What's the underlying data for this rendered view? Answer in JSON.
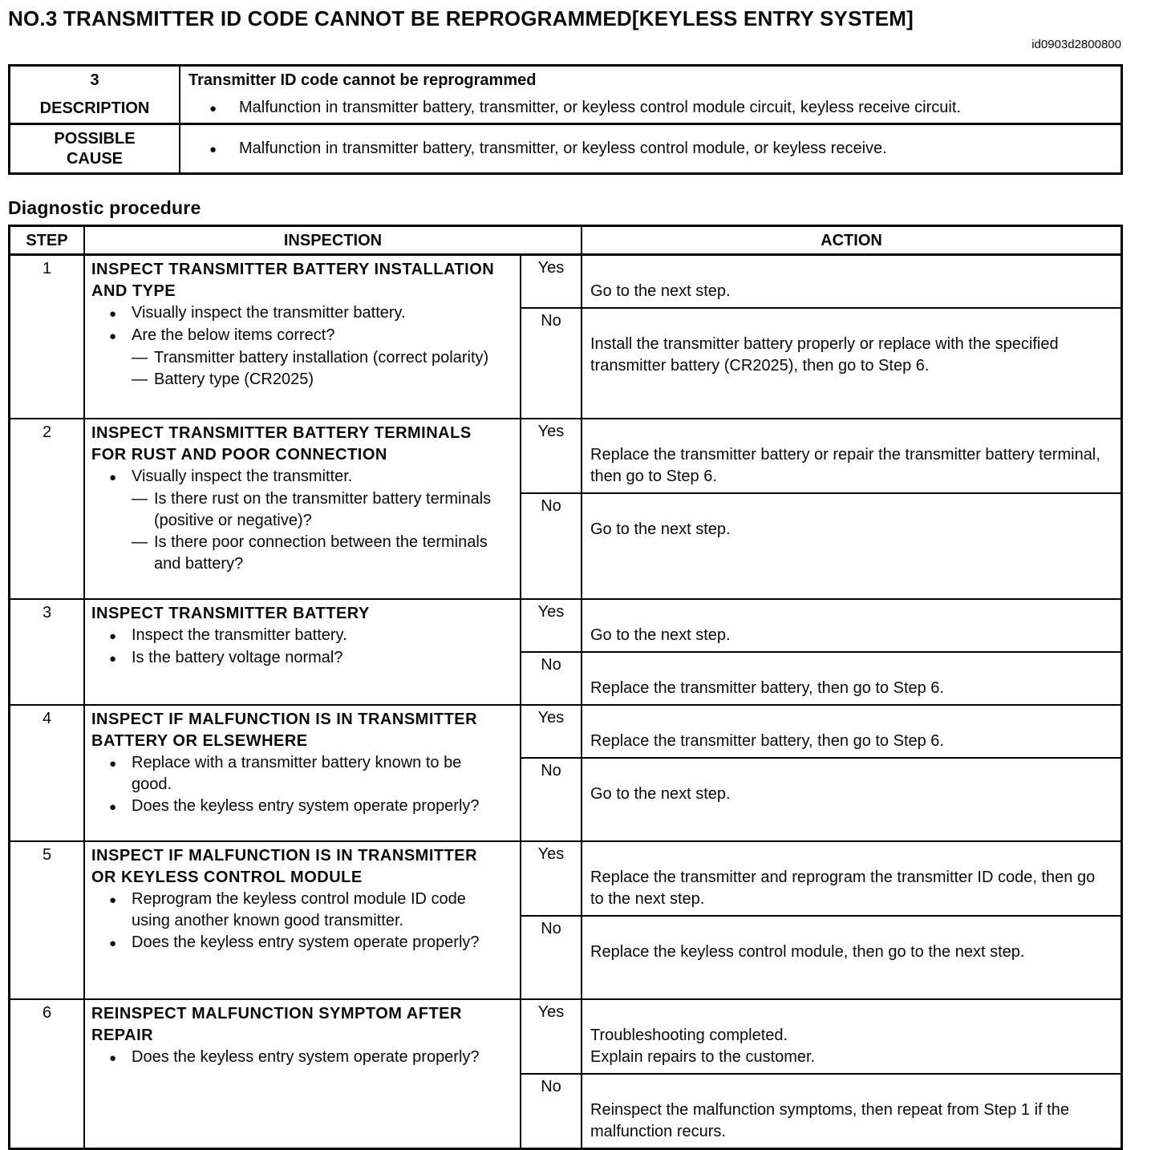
{
  "page": {
    "title": "NO.3 TRANSMITTER ID CODE CANNOT BE REPROGRAMMED[KEYLESS ENTRY SYSTEM]",
    "doc_id": "id0903d2800800",
    "section_heading": "Diagnostic procedure"
  },
  "markers": {
    "bullet": "●",
    "dash": "—"
  },
  "summary_table": {
    "number": "3",
    "title": "Transmitter ID code cannot be reprogrammed",
    "rows": [
      {
        "label": "DESCRIPTION",
        "text": "Malfunction in transmitter battery, transmitter, or keyless control module circuit, keyless receive circuit."
      },
      {
        "label": "POSSIBLE\nCAUSE",
        "text": "Malfunction in transmitter battery, transmitter, or keyless control module, or keyless receive."
      }
    ]
  },
  "procedure_table": {
    "step_header": "STEP",
    "inspection_header": "INSPECTION",
    "action_header": "ACTION",
    "yes_label": "Yes",
    "no_label": "No",
    "steps": [
      {
        "number": "1",
        "title": "INSPECT TRANSMITTER BATTERY INSTALLATION AND TYPE",
        "items": [
          {
            "marker": "bullet",
            "text": "Visually inspect the transmitter battery."
          },
          {
            "marker": "bullet",
            "text": "Are the below items correct?"
          },
          {
            "marker": "dash",
            "text": "Transmitter battery installation (correct polarity)"
          },
          {
            "marker": "dash",
            "text": "Battery type (CR2025)"
          }
        ],
        "yes": "Go to the next step.",
        "no": "Install the transmitter battery properly or replace with the specified transmitter battery (CR2025), then go to Step 6."
      },
      {
        "number": "2",
        "title": "INSPECT TRANSMITTER BATTERY TERMINALS FOR RUST AND POOR CONNECTION",
        "items": [
          {
            "marker": "bullet",
            "text": "Visually inspect the transmitter."
          },
          {
            "marker": "dash",
            "text": "Is there rust on the transmitter battery terminals (positive or negative)?"
          },
          {
            "marker": "dash",
            "text": "Is there poor connection between the terminals and battery?"
          }
        ],
        "yes": "Replace the transmitter battery or repair the transmitter battery terminal, then go to Step 6.",
        "no": "Go to the next step."
      },
      {
        "number": "3",
        "title": "INSPECT TRANSMITTER BATTERY",
        "items": [
          {
            "marker": "bullet",
            "text": "Inspect the transmitter battery."
          },
          {
            "marker": "bullet",
            "text": "Is the battery voltage normal?"
          }
        ],
        "yes": "Go to the next step.",
        "no": "Replace the transmitter battery, then go to Step 6."
      },
      {
        "number": "4",
        "title": "INSPECT IF MALFUNCTION IS IN TRANSMITTER BATTERY OR ELSEWHERE",
        "items": [
          {
            "marker": "bullet",
            "text": "Replace with a transmitter battery known to be good."
          },
          {
            "marker": "bullet",
            "text": "Does the keyless entry system operate properly?"
          }
        ],
        "yes": "Replace the transmitter battery, then go to Step 6.",
        "no": "Go to the next step."
      },
      {
        "number": "5",
        "title": "INSPECT IF MALFUNCTION IS IN TRANSMITTER OR KEYLESS CONTROL MODULE",
        "items": [
          {
            "marker": "bullet",
            "text": "Reprogram the keyless control module ID code using another known good transmitter."
          },
          {
            "marker": "bullet",
            "text": "Does the keyless entry system operate properly?"
          }
        ],
        "yes": "Replace the transmitter and reprogram the transmitter ID code, then go to the next step.",
        "no": "Replace the keyless control module, then go to the next step."
      },
      {
        "number": "6",
        "title": "REINSPECT MALFUNCTION SYMPTOM AFTER REPAIR",
        "items": [
          {
            "marker": "bullet",
            "text": "Does the keyless entry system operate properly?"
          }
        ],
        "yes": "Troubleshooting completed.\nExplain repairs to the customer.",
        "no": "Reinspect the malfunction symptoms, then repeat from Step 1 if the malfunction recurs."
      }
    ]
  }
}
